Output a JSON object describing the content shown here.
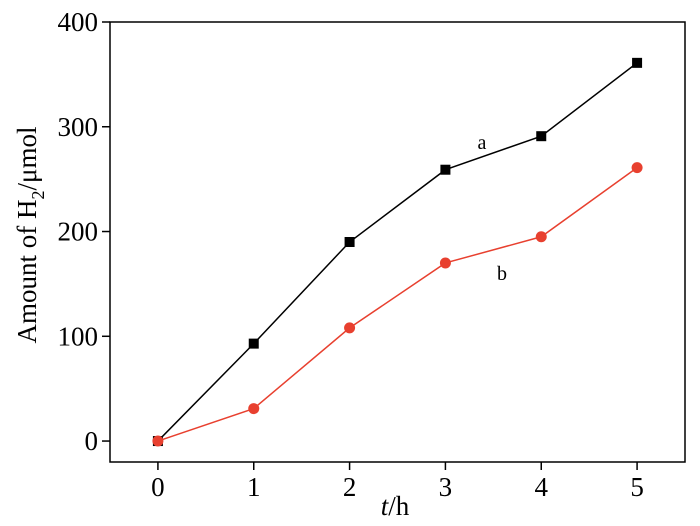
{
  "chart_data": {
    "type": "line",
    "x": [
      0,
      1,
      2,
      3,
      4,
      5
    ],
    "series": [
      {
        "name": "a",
        "color": "#000000",
        "marker": "square",
        "values": [
          0,
          93,
          190,
          259,
          291,
          361
        ]
      },
      {
        "name": "b",
        "color": "#e8402f",
        "marker": "circle",
        "values": [
          0,
          31,
          108,
          170,
          195,
          261
        ]
      }
    ],
    "xlim": [
      -0.5,
      5.5
    ],
    "xticks": [
      0,
      1,
      2,
      3,
      4,
      5
    ],
    "ylim": [
      -20,
      400
    ],
    "yticks": [
      0,
      100,
      200,
      300,
      400
    ],
    "x_label": {
      "italic": "t",
      "rest": "/h"
    },
    "y_label": {
      "main": "Amount of H",
      "sub": "2",
      "rest": "/μmol"
    }
  }
}
